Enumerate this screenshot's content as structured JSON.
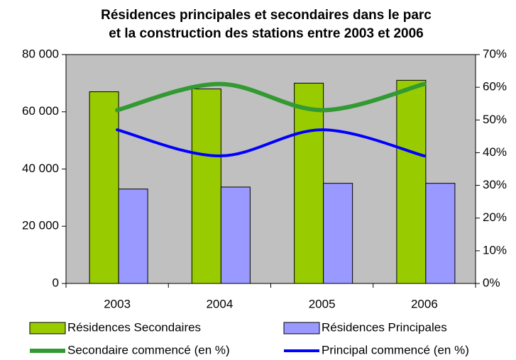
{
  "chart_data": {
    "type": "bar",
    "title": [
      "Résidences principales et secondaires dans le parc",
      "et la construction des stations entre 2003 et 2006"
    ],
    "categories": [
      "2003",
      "2004",
      "2005",
      "2006"
    ],
    "series": [
      {
        "name": "Résidences Secondaires",
        "type": "bar",
        "color": "#99cc00",
        "values": [
          67000,
          68000,
          70000,
          71000
        ]
      },
      {
        "name": "Résidences Principales",
        "type": "bar",
        "color": "#9999ff",
        "values": [
          33000,
          33700,
          35000,
          35000
        ]
      },
      {
        "name": "Secondaire commencé (en %)",
        "type": "line",
        "axis": "y2",
        "color": "#339933",
        "values": [
          53,
          61,
          53,
          61
        ]
      },
      {
        "name": "Principal commencé (en %)",
        "type": "line",
        "axis": "y2",
        "color": "#0000ff",
        "values": [
          47,
          39,
          47,
          39
        ]
      }
    ],
    "ylim": [
      0,
      80000
    ],
    "yticks": [
      {
        "value": 0,
        "label": "0"
      },
      {
        "value": 20000,
        "label": "20 000"
      },
      {
        "value": 40000,
        "label": "40 000"
      },
      {
        "value": 60000,
        "label": "60 000"
      },
      {
        "value": 80000,
        "label": "80 000"
      }
    ],
    "y2lim": [
      0,
      70
    ],
    "y2ticks": [
      {
        "value": 0,
        "label": "0%"
      },
      {
        "value": 10,
        "label": "10%"
      },
      {
        "value": 20,
        "label": "20%"
      },
      {
        "value": 30,
        "label": "30%"
      },
      {
        "value": 40,
        "label": "40%"
      },
      {
        "value": 50,
        "label": "50%"
      },
      {
        "value": 60,
        "label": "60%"
      },
      {
        "value": 70,
        "label": "70%"
      }
    ],
    "plot_background": "#c0c0c0"
  }
}
